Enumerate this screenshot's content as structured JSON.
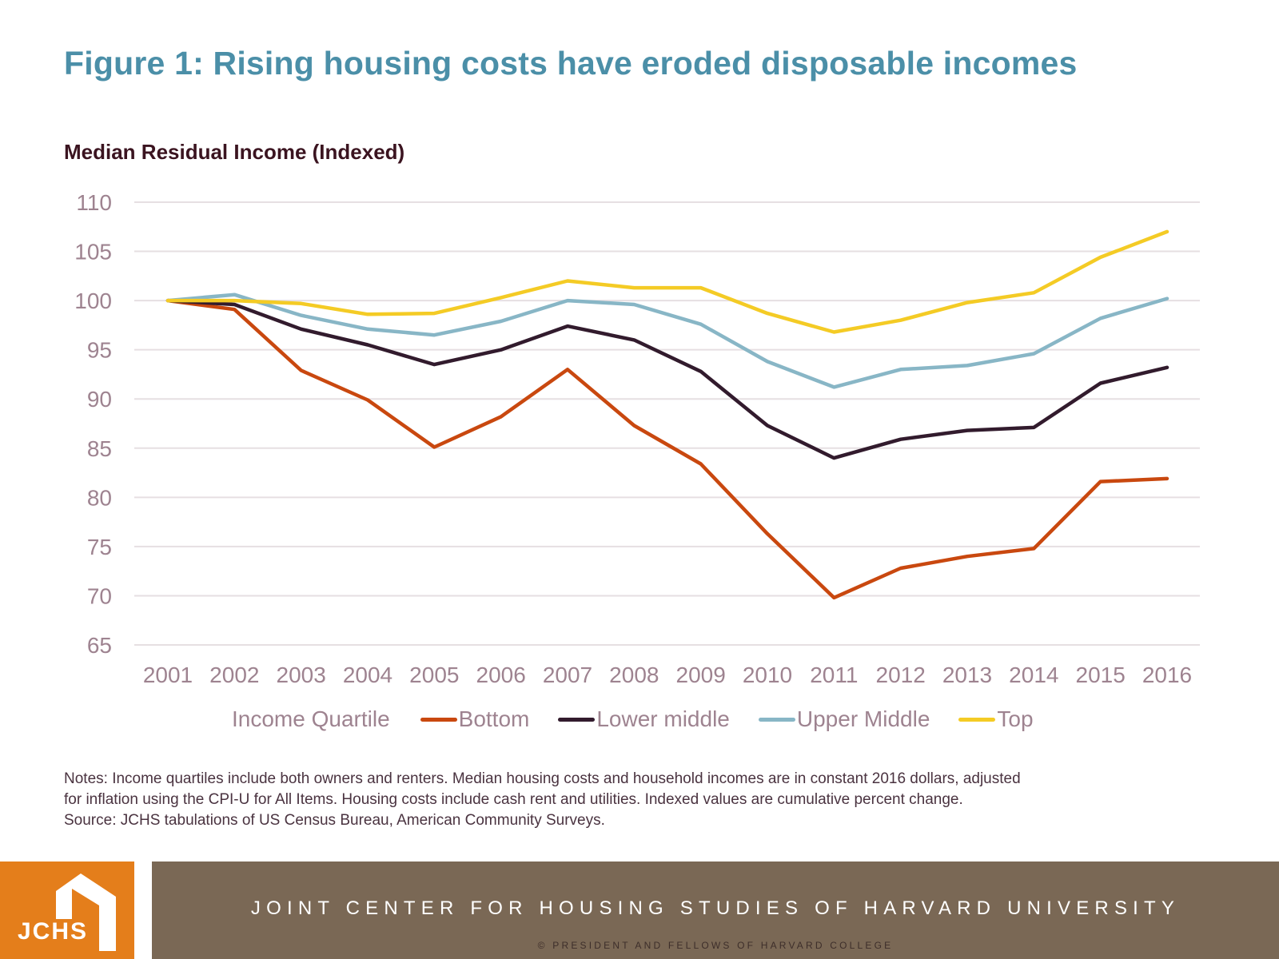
{
  "header": {
    "title": "Figure 1: Rising housing costs have eroded disposable incomes",
    "subtitle": "Median Residual Income (Indexed)"
  },
  "chart_data": {
    "type": "line",
    "title": "Median Residual Income (Indexed)",
    "xlabel": "",
    "ylabel": "",
    "x": [
      "2001",
      "2002",
      "2003",
      "2004",
      "2005",
      "2006",
      "2007",
      "2008",
      "2009",
      "2010",
      "2011",
      "2012",
      "2013",
      "2014",
      "2015",
      "2016"
    ],
    "ylim": [
      65,
      110
    ],
    "yticks": [
      110,
      105,
      100,
      95,
      90,
      85,
      80,
      75,
      70,
      65
    ],
    "grid": true,
    "legend_title": "Income Quartile",
    "legend_position": "bottom",
    "series": [
      {
        "name": "Bottom",
        "color": "#c9480f",
        "values": [
          100.0,
          99.1,
          92.9,
          89.9,
          85.1,
          88.2,
          93.0,
          87.3,
          83.4,
          76.3,
          69.8,
          72.8,
          74.0,
          74.8,
          81.6,
          81.9
        ]
      },
      {
        "name": "Lower middle",
        "color": "#321b2d",
        "values": [
          100.0,
          99.6,
          97.1,
          95.5,
          93.5,
          95.0,
          97.4,
          96.0,
          92.8,
          87.3,
          84.0,
          85.9,
          86.8,
          87.1,
          91.6,
          93.2
        ]
      },
      {
        "name": "Upper Middle",
        "color": "#88b6c6",
        "values": [
          100.0,
          100.6,
          98.5,
          97.1,
          96.5,
          97.9,
          100.0,
          99.6,
          97.6,
          93.8,
          91.2,
          93.0,
          93.4,
          94.6,
          98.2,
          100.2
        ]
      },
      {
        "name": "Top",
        "color": "#f4cb25",
        "values": [
          100.0,
          100.0,
          99.7,
          98.6,
          98.7,
          100.3,
          102.0,
          101.3,
          101.3,
          98.7,
          96.8,
          98.0,
          99.8,
          100.8,
          104.4,
          107.0
        ]
      }
    ]
  },
  "notes": {
    "line1": "Notes: Income quartiles include both owners and renters. Median housing costs and household incomes are in constant 2016 dollars, adjusted",
    "line2": "for inflation using the CPI-U for All Items. Housing costs include cash rent and utilities. Indexed values are cumulative percent change.",
    "line3": "Source: JCHS tabulations of US Census Bureau, American Community Surveys."
  },
  "footer": {
    "logo_text": "JCHS",
    "logo_icon": "house-icon",
    "org_name": "JOINT CENTER FOR HOUSING STUDIES OF HARVARD UNIVERSITY",
    "copyright": "© PRESIDENT AND FELLOWS OF HARVARD COLLEGE",
    "logo_color": "#e47e1b",
    "band_color": "#7a6855"
  }
}
